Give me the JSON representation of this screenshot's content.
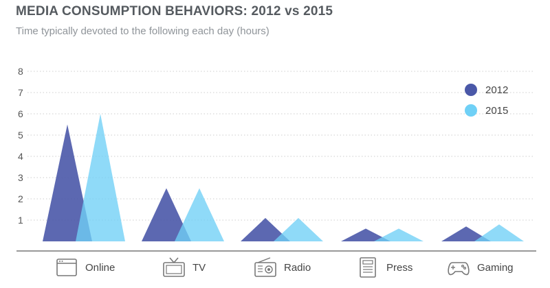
{
  "title": "MEDIA CONSUMPTION BEHAVIORS: 2012 vs 2015",
  "subtitle": "Time typically devoted to the following each day (hours)",
  "colors": {
    "s2012": "#4a58a8",
    "s2015": "#6fd0f6",
    "axis": "#777777",
    "grid": "#cccccc",
    "icon": "#777777"
  },
  "chart_data": {
    "type": "bar",
    "title": "MEDIA CONSUMPTION BEHAVIORS: 2012 vs 2015",
    "subtitle": "Time typically devoted to the following each day (hours)",
    "categories": [
      "Online",
      "TV",
      "Radio",
      "Press",
      "Gaming"
    ],
    "category_icons": [
      "browser-window-icon",
      "tv-icon",
      "radio-icon",
      "newspaper-icon",
      "gamepad-icon"
    ],
    "series": [
      {
        "name": "2012",
        "values": [
          5.5,
          2.5,
          1.1,
          0.6,
          0.7
        ]
      },
      {
        "name": "2015",
        "values": [
          6.0,
          2.5,
          1.1,
          0.6,
          0.8
        ]
      }
    ],
    "ylim": [
      0,
      8
    ],
    "yticks": [
      "1",
      "2",
      "3",
      "4",
      "5",
      "6",
      "7",
      "8"
    ],
    "grid": true,
    "legend_position": "top-right",
    "mark_shape": "triangle"
  }
}
